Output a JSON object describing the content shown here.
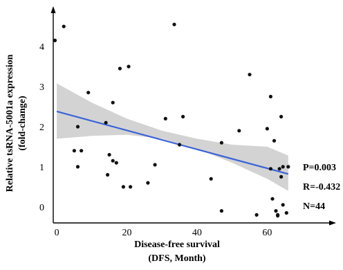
{
  "chart_data": {
    "type": "scatter",
    "xlabel_lines": [
      "Disease-free survival",
      "(DFS, Month)"
    ],
    "ylabel_lines": [
      "Relative tsRNA-5001a expression",
      "(fold-change)"
    ],
    "xlim": [
      -1,
      69
    ],
    "ylim": [
      -0.4,
      4.9
    ],
    "x_ticks": [
      0,
      20,
      40,
      60
    ],
    "y_ticks": [
      0,
      1,
      2,
      3,
      4
    ],
    "grid": false,
    "points": [
      [
        -0.5,
        4.15
      ],
      [
        2,
        4.5
      ],
      [
        5,
        1.4
      ],
      [
        6,
        2.0
      ],
      [
        6,
        1.0
      ],
      [
        7,
        1.4
      ],
      [
        9,
        2.85
      ],
      [
        14,
        2.1
      ],
      [
        14.5,
        0.8
      ],
      [
        15,
        1.3
      ],
      [
        16,
        1.15
      ],
      [
        16,
        2.6
      ],
      [
        17,
        1.1
      ],
      [
        18,
        3.45
      ],
      [
        19,
        0.5
      ],
      [
        20.5,
        3.5
      ],
      [
        21,
        0.5
      ],
      [
        26,
        0.6
      ],
      [
        28,
        1.05
      ],
      [
        31,
        2.2
      ],
      [
        33.5,
        4.55
      ],
      [
        35,
        1.55
      ],
      [
        36,
        2.25
      ],
      [
        44,
        0.7
      ],
      [
        47,
        1.6
      ],
      [
        47,
        -0.1
      ],
      [
        52,
        1.9
      ],
      [
        55,
        3.3
      ],
      [
        57,
        -0.2
      ],
      [
        60,
        1.95
      ],
      [
        61,
        0.95
      ],
      [
        61,
        2.75
      ],
      [
        61.5,
        0.2
      ],
      [
        62,
        1.65
      ],
      [
        62.5,
        -0.1
      ],
      [
        63,
        -0.2
      ],
      [
        63,
        -0.22
      ],
      [
        63.5,
        0.95
      ],
      [
        64,
        2.25
      ],
      [
        64,
        0.75
      ],
      [
        64.5,
        1.0
      ],
      [
        64.5,
        0.05
      ],
      [
        65.5,
        -0.15
      ],
      [
        66,
        1.0
      ]
    ],
    "fit_line": {
      "x": [
        0,
        66
      ],
      "y": [
        2.38,
        0.82
      ],
      "color": "#3a63d8"
    },
    "confidence_band": {
      "x": [
        0,
        10,
        20,
        30,
        40,
        50,
        60,
        66
      ],
      "lower": [
        1.7,
        1.77,
        1.8,
        1.7,
        1.45,
        1.1,
        0.7,
        0.4
      ],
      "upper": [
        3.08,
        2.6,
        2.2,
        1.9,
        1.7,
        1.55,
        1.5,
        1.28
      ],
      "color": "#d3d3d3"
    },
    "annotations": [
      "P=0.003",
      "R=-0.432",
      "N=44"
    ]
  }
}
